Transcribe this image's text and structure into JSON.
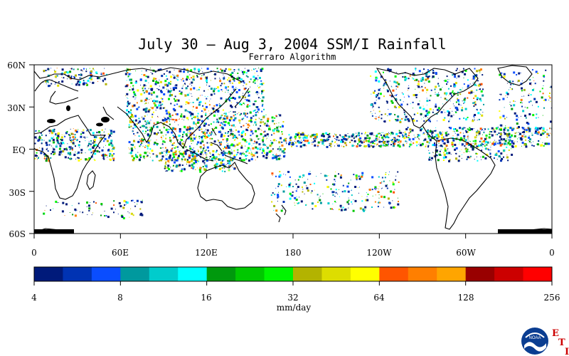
{
  "title": "July 30 – Aug 3, 2004 SSM/I Rainfall",
  "subtitle": "Ferraro Algorithm",
  "lat_labels": [
    "60N",
    "30N",
    "EQ",
    "30S",
    "60S"
  ],
  "lon_labels": [
    "0",
    "60E",
    "120E",
    "180",
    "120W",
    "60W",
    "0"
  ],
  "colorbar": {
    "unit": "mm/day",
    "ticks": [
      "4",
      "8",
      "16",
      "32",
      "64",
      "128",
      "256"
    ],
    "colors": [
      "#001a7a",
      "#0033b3",
      "#0a4dff",
      "#00999e",
      "#00cccc",
      "#00ffff",
      "#00990d",
      "#00c800",
      "#00f500",
      "#b3b300",
      "#dddd00",
      "#ffff00",
      "#ff5500",
      "#ff7f00",
      "#ffa500",
      "#990000",
      "#cc0000",
      "#ff0000"
    ]
  },
  "logo": {
    "badge": "NOAA",
    "letters": [
      "E",
      "T",
      "I"
    ]
  },
  "icons": {
    "logo": "noaa-logo-icon"
  }
}
